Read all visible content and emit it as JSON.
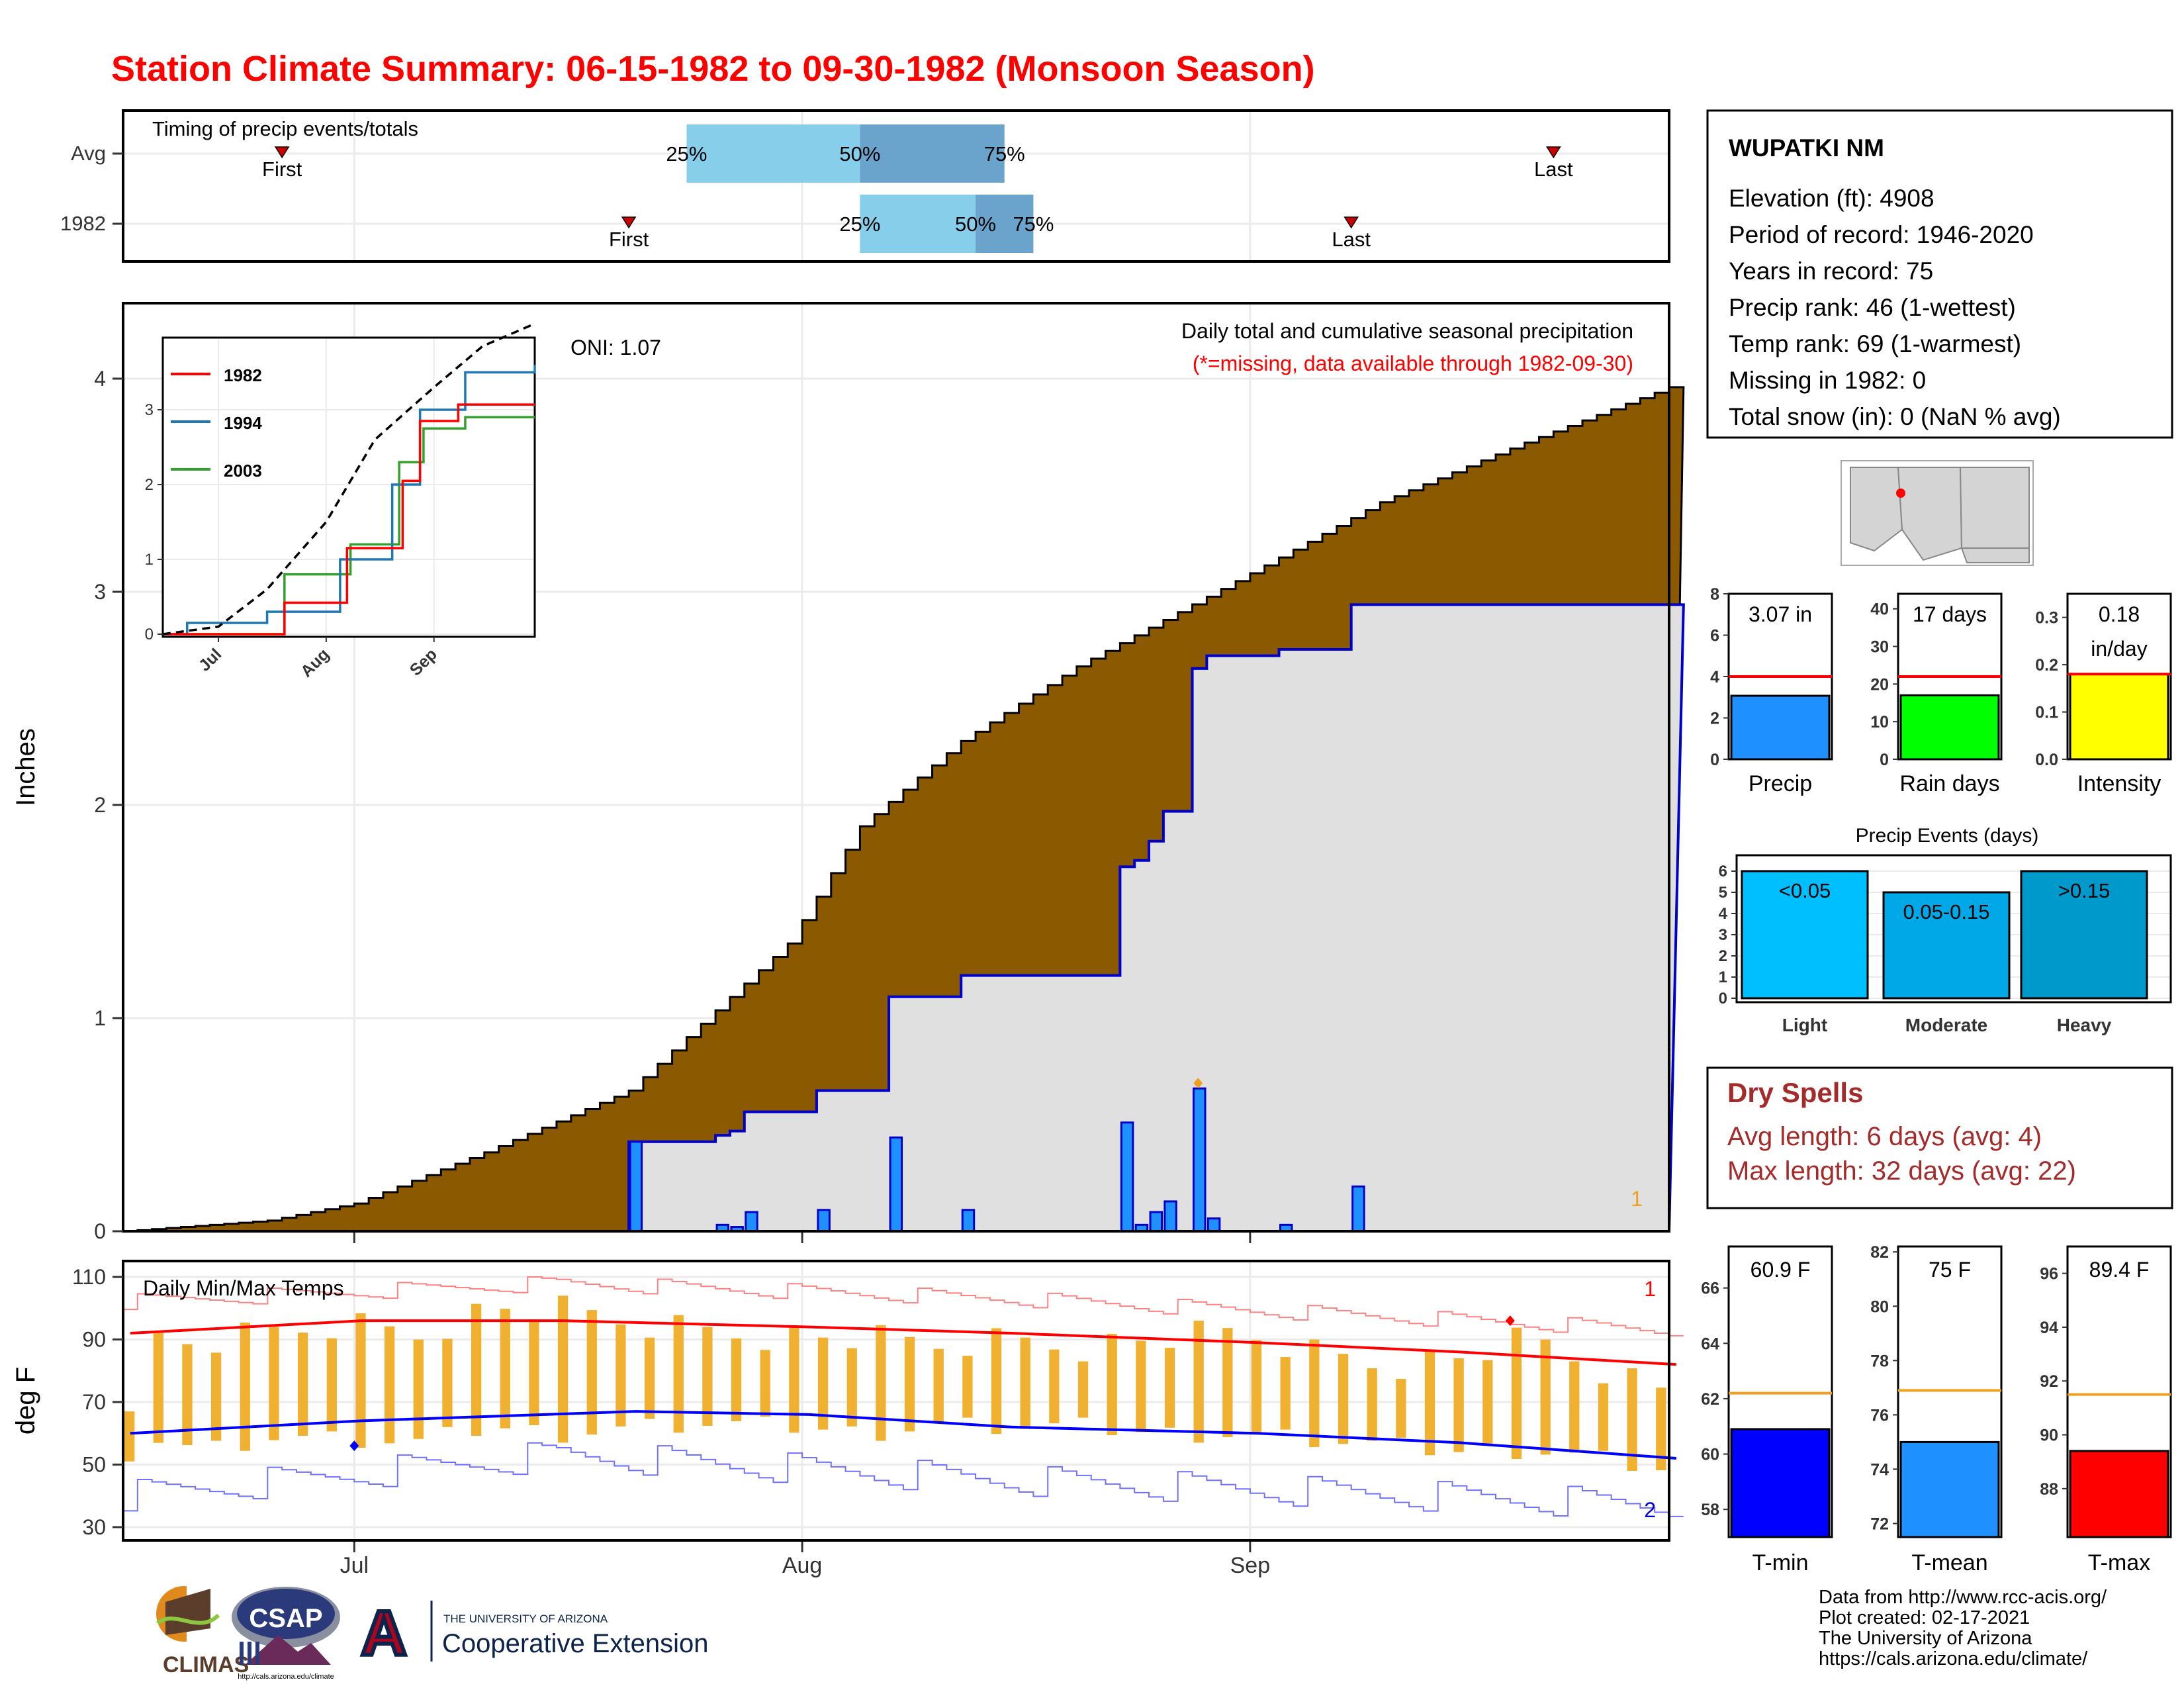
{
  "title": "Station Climate Summary: 06-15-1982 to 09-30-1982 (Monsoon Season)",
  "colors": {
    "title": "#ff0000",
    "cum_fill": "#8b5a00",
    "obs_fill": "#e0e0e0",
    "obs_line": "#0000cc",
    "daily_bar": "#1e90ff",
    "tmax_line": "#ff0000",
    "tmin_line": "#0000ff",
    "temp_bar": "#f0b030",
    "timing_light": "#87ceeb",
    "timing_dark": "#6aa3cc",
    "panel_red": "#a52a2a"
  },
  "x_axis": {
    "tick_labels": [
      "Jul",
      "Aug",
      "Sep"
    ]
  },
  "timing_panel": {
    "label": "Timing of precip events/totals",
    "rows": [
      {
        "name": "Avg",
        "first_label": "First",
        "last_label": "Last",
        "p25": "25%",
        "p50": "50%",
        "p75": "75%"
      },
      {
        "name": "1982",
        "first_label": "First",
        "last_label": "Last",
        "p25": "25%",
        "p50": "50%",
        "p75": "75%"
      }
    ]
  },
  "precip_panel": {
    "ylabel": "Inches",
    "title": "Daily total and cumulative seasonal precipitation",
    "subtitle": "(*=missing, data available through 1982-09-30)",
    "oni": "ONI: 1.07",
    "yticks": [
      "0",
      "1",
      "2",
      "3",
      "4"
    ],
    "corner_label": "1",
    "inset": {
      "xticks": [
        "Jul",
        "Aug",
        "Sep"
      ],
      "yticks": [
        "0",
        "1",
        "2",
        "3"
      ],
      "legend": [
        {
          "name": "1982",
          "color": "#ff0000"
        },
        {
          "name": "1994",
          "color": "#1f78b4"
        },
        {
          "name": "2003",
          "color": "#33a02c"
        }
      ]
    }
  },
  "temp_panel": {
    "ylabel": "deg F",
    "label": "Daily Min/Max Temps",
    "yticks": [
      "30",
      "50",
      "70",
      "90",
      "110"
    ],
    "record_high_count": "1",
    "record_low_count": "2"
  },
  "station_box": {
    "name": "WUPATKI NM",
    "lines": [
      "Elevation (ft): 4908",
      "Period of record: 1946-2020",
      "Years in record: 75",
      "Precip rank: 46 (1-wettest)",
      "Temp rank: 69 (1-warmest)",
      "Missing in 1982: 0",
      "Total snow (in): 0 (NaN % avg)"
    ]
  },
  "summary_bars": [
    {
      "label": "Precip",
      "value_text": "3.07 in",
      "value": 3.07,
      "avg": 4.0,
      "ymax": 8,
      "yticks": [
        "0",
        "2",
        "4",
        "6",
        "8"
      ],
      "color": "#1e90ff"
    },
    {
      "label": "Rain days",
      "value_text": "17 days",
      "value": 17,
      "avg": 22,
      "ymax": 44,
      "yticks": [
        "0",
        "10",
        "20",
        "30",
        "40"
      ],
      "color": "#00ff00"
    },
    {
      "label": "Intensity",
      "value_text": "0.18",
      "value_text2": "in/day",
      "value": 0.18,
      "avg": 0.18,
      "ymax": 0.35,
      "yticks": [
        "0.0",
        "0.1",
        "0.2",
        "0.3"
      ],
      "color": "#ffff00"
    }
  ],
  "precip_events": {
    "title": "Precip Events (days)",
    "yticks": [
      "0",
      "1",
      "2",
      "3",
      "4",
      "5",
      "6"
    ],
    "bars": [
      {
        "label": "Light",
        "range": "<0.05",
        "value": 6,
        "color": "#00bfff"
      },
      {
        "label": "Moderate",
        "range": "0.05-0.15",
        "value": 5,
        "color": "#00a8e8"
      },
      {
        "label": "Heavy",
        "range": ">0.15",
        "value": 6,
        "color": "#0099cc"
      }
    ]
  },
  "dry_spells": {
    "title": "Dry Spells",
    "avg_line": "Avg length: 6 days (avg: 4)",
    "max_line": "Max length: 32 days (avg: 22)"
  },
  "temp_bars": [
    {
      "label": "T-min",
      "value_text": "60.9 F",
      "value": 60.9,
      "avg": 62.2,
      "ymin": 57,
      "ymax": 67.5,
      "yticks": [
        "58",
        "60",
        "62",
        "64",
        "66"
      ],
      "color": "#0000ff"
    },
    {
      "label": "T-mean",
      "value_text": "75 F",
      "value": 75.0,
      "avg": 76.9,
      "ymin": 71.5,
      "ymax": 82.2,
      "yticks": [
        "72",
        "74",
        "76",
        "78",
        "80",
        "82"
      ],
      "color": "#1e90ff"
    },
    {
      "label": "T-max",
      "value_text": "89.4 F",
      "value": 89.4,
      "avg": 91.5,
      "ymin": 86.2,
      "ymax": 97,
      "yticks": [
        "88",
        "90",
        "92",
        "94",
        "96"
      ],
      "color": "#ff0000"
    }
  ],
  "footer": {
    "lines": [
      "Data from http://www.rcc-acis.org/",
      "Plot created: 02-17-2021",
      "The University of Arizona",
      "https://cals.arizona.edu/climate/"
    ],
    "logos": {
      "climas": "CLIMAS",
      "csap": "CSAP",
      "csap_url": "http://cals.arizona.edu/climate",
      "ua_letter": "A",
      "ua_small": "THE UNIVERSITY OF ARIZONA",
      "ua_big": "Cooperative Extension"
    }
  },
  "chart_data": {
    "type": "area",
    "date_range": [
      "1982-06-15",
      "1982-09-30"
    ],
    "precip_daily_1982": [
      {
        "date": "1982-07-20",
        "inches": 0.42
      },
      {
        "date": "1982-07-26",
        "inches": 0.03
      },
      {
        "date": "1982-07-27",
        "inches": 0.02
      },
      {
        "date": "1982-07-28",
        "inches": 0.09
      },
      {
        "date": "1982-08-02",
        "inches": 0.1
      },
      {
        "date": "1982-08-07",
        "inches": 0.44
      },
      {
        "date": "1982-08-12",
        "inches": 0.1
      },
      {
        "date": "1982-08-23",
        "inches": 0.51
      },
      {
        "date": "1982-08-24",
        "inches": 0.03
      },
      {
        "date": "1982-08-25",
        "inches": 0.09
      },
      {
        "date": "1982-08-26",
        "inches": 0.14
      },
      {
        "date": "1982-08-28",
        "inches": 0.67
      },
      {
        "date": "1982-08-29",
        "inches": 0.06
      },
      {
        "date": "1982-09-03",
        "inches": 0.03
      },
      {
        "date": "1982-09-08",
        "inches": 0.21
      }
    ],
    "cumulative_avg": [
      {
        "date": "1982-06-15",
        "inches": 0.0
      },
      {
        "date": "1982-06-25",
        "inches": 0.05
      },
      {
        "date": "1982-07-01",
        "inches": 0.13
      },
      {
        "date": "1982-07-10",
        "inches": 0.37
      },
      {
        "date": "1982-07-20",
        "inches": 0.66
      },
      {
        "date": "1982-07-31",
        "inches": 1.35
      },
      {
        "date": "1982-08-05",
        "inches": 1.9
      },
      {
        "date": "1982-08-12",
        "inches": 2.3
      },
      {
        "date": "1982-08-20",
        "inches": 2.65
      },
      {
        "date": "1982-08-31",
        "inches": 3.05
      },
      {
        "date": "1982-09-10",
        "inches": 3.42
      },
      {
        "date": "1982-09-20",
        "inches": 3.7
      },
      {
        "date": "1982-09-30",
        "inches": 3.96
      }
    ],
    "inset_cumulative": {
      "avg": [
        {
          "date": "1982-06-15",
          "inches": 0.0
        },
        {
          "date": "1982-07-01",
          "inches": 0.1
        },
        {
          "date": "1982-07-15",
          "inches": 0.6
        },
        {
          "date": "1982-08-01",
          "inches": 1.5
        },
        {
          "date": "1982-08-15",
          "inches": 2.6
        },
        {
          "date": "1982-09-01",
          "inches": 3.3
        },
        {
          "date": "1982-09-15",
          "inches": 3.85
        },
        {
          "date": "1982-09-30",
          "inches": 4.15
        }
      ],
      "1982": [
        {
          "date": "1982-06-15",
          "inches": 0.0
        },
        {
          "date": "1982-07-20",
          "inches": 0.0
        },
        {
          "date": "1982-07-20",
          "inches": 0.42
        },
        {
          "date": "1982-08-07",
          "inches": 1.15
        },
        {
          "date": "1982-08-23",
          "inches": 2.05
        },
        {
          "date": "1982-08-28",
          "inches": 2.85
        },
        {
          "date": "1982-09-08",
          "inches": 3.07
        },
        {
          "date": "1982-09-30",
          "inches": 3.07
        }
      ],
      "1994": [
        {
          "date": "1982-06-15",
          "inches": 0.0
        },
        {
          "date": "1982-06-22",
          "inches": 0.15
        },
        {
          "date": "1982-07-15",
          "inches": 0.3
        },
        {
          "date": "1982-08-05",
          "inches": 1.0
        },
        {
          "date": "1982-08-20",
          "inches": 2.0
        },
        {
          "date": "1982-08-28",
          "inches": 3.0
        },
        {
          "date": "1982-09-10",
          "inches": 3.5
        },
        {
          "date": "1982-09-30",
          "inches": 3.6
        }
      ],
      "2003": [
        {
          "date": "1982-06-15",
          "inches": 0.0
        },
        {
          "date": "1982-07-15",
          "inches": 0.0
        },
        {
          "date": "1982-07-20",
          "inches": 0.8
        },
        {
          "date": "1982-08-08",
          "inches": 1.2
        },
        {
          "date": "1982-08-22",
          "inches": 2.3
        },
        {
          "date": "1982-08-29",
          "inches": 2.75
        },
        {
          "date": "1982-09-10",
          "inches": 2.9
        },
        {
          "date": "1982-09-30",
          "inches": 2.9
        }
      ]
    },
    "timing": {
      "avg": {
        "first": "1982-06-26",
        "p25": "1982-07-24",
        "p50": "1982-08-05",
        "p75": "1982-08-15",
        "last": "1982-09-22"
      },
      "1982": {
        "first": "1982-07-20",
        "p25": "1982-08-05",
        "p50": "1982-08-13",
        "p75": "1982-08-17",
        "last": "1982-09-08"
      }
    },
    "temps": {
      "tmax_normal": [
        {
          "date": "1982-06-15",
          "degF": 92
        },
        {
          "date": "1982-07-01",
          "degF": 96
        },
        {
          "date": "1982-07-15",
          "degF": 96
        },
        {
          "date": "1982-08-01",
          "degF": 94
        },
        {
          "date": "1982-08-15",
          "degF": 92
        },
        {
          "date": "1982-09-01",
          "degF": 89
        },
        {
          "date": "1982-09-15",
          "degF": 86
        },
        {
          "date": "1982-09-30",
          "degF": 82
        }
      ],
      "tmin_normal": [
        {
          "date": "1982-06-15",
          "degF": 60
        },
        {
          "date": "1982-07-01",
          "degF": 64
        },
        {
          "date": "1982-07-20",
          "degF": 67
        },
        {
          "date": "1982-08-01",
          "degF": 66
        },
        {
          "date": "1982-08-15",
          "degF": 62
        },
        {
          "date": "1982-09-01",
          "degF": 60
        },
        {
          "date": "1982-09-15",
          "degF": 57
        },
        {
          "date": "1982-09-30",
          "degF": 52
        }
      ],
      "record_high": [
        {
          "date": "1982-06-15",
          "degF": 102
        },
        {
          "date": "1982-07-15",
          "degF": 108
        },
        {
          "date": "1982-08-15",
          "degF": 103
        },
        {
          "date": "1982-09-30",
          "degF": 93
        }
      ],
      "record_low": [
        {
          "date": "1982-06-15",
          "degF": 40
        },
        {
          "date": "1982-07-15",
          "degF": 53
        },
        {
          "date": "1982-08-15",
          "degF": 45
        },
        {
          "date": "1982-09-30",
          "degF": 37
        }
      ],
      "daily_1982": [
        {
          "date": "1982-06-16",
          "min": 60,
          "max": 90
        },
        {
          "date": "1982-06-20",
          "min": 55,
          "max": 88
        },
        {
          "date": "1982-06-25",
          "min": 59,
          "max": 92
        },
        {
          "date": "1982-06-30",
          "min": 58,
          "max": 95
        },
        {
          "date": "1982-07-05",
          "min": 57,
          "max": 92
        },
        {
          "date": "1982-07-10",
          "min": 62,
          "max": 100
        },
        {
          "date": "1982-07-15",
          "min": 60,
          "max": 99
        },
        {
          "date": "1982-07-20",
          "min": 62,
          "max": 95
        },
        {
          "date": "1982-07-25",
          "min": 63,
          "max": 93
        },
        {
          "date": "1982-07-31",
          "min": 62,
          "max": 91
        },
        {
          "date": "1982-08-05",
          "min": 60,
          "max": 90
        },
        {
          "date": "1982-08-10",
          "min": 63,
          "max": 88
        },
        {
          "date": "1982-08-15",
          "min": 62,
          "max": 90
        },
        {
          "date": "1982-08-20",
          "min": 62,
          "max": 88
        },
        {
          "date": "1982-08-25",
          "min": 60,
          "max": 90
        },
        {
          "date": "1982-08-31",
          "min": 60,
          "max": 92
        },
        {
          "date": "1982-09-05",
          "min": 58,
          "max": 86
        },
        {
          "date": "1982-09-10",
          "min": 56,
          "max": 82
        },
        {
          "date": "1982-09-15",
          "min": 54,
          "max": 84
        },
        {
          "date": "1982-09-20",
          "min": 55,
          "max": 90
        },
        {
          "date": "1982-09-25",
          "min": 52,
          "max": 80
        },
        {
          "date": "1982-09-30",
          "min": 48,
          "max": 72
        }
      ]
    }
  }
}
